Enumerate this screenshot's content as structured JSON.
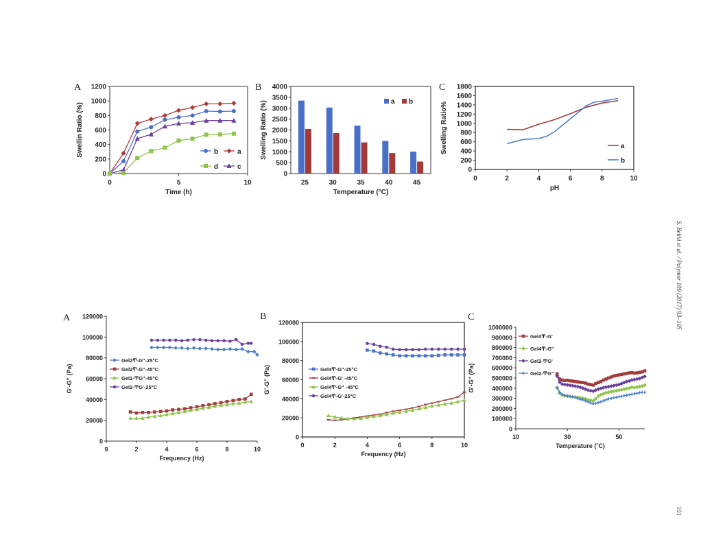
{
  "page": {
    "journal_ref": "S. Bekhi et al. / Polymer 109 (2017) 93–105",
    "page_number": "101"
  },
  "chart_data": [
    {
      "panel": "A",
      "type": "line",
      "xlabel": "Time (h)",
      "ylabel": "Swellin Ratio (%)",
      "xlim": [
        0,
        10
      ],
      "ylim": [
        0,
        1200
      ],
      "xticks": [
        0,
        5,
        10
      ],
      "yticks": [
        0,
        200,
        400,
        600,
        800,
        1000,
        1200
      ],
      "legend": [
        "b",
        "a",
        "d",
        "c"
      ],
      "series": [
        {
          "name": "a",
          "color": "#b23a3a",
          "marker": "diamond",
          "x": [
            0,
            1,
            2,
            3,
            4,
            5,
            6,
            7,
            8,
            9
          ],
          "y": [
            0,
            280,
            690,
            750,
            800,
            870,
            910,
            960,
            960,
            970
          ]
        },
        {
          "name": "b",
          "color": "#4a6fc8",
          "marker": "circle",
          "x": [
            0,
            1,
            2,
            3,
            4,
            5,
            6,
            7,
            8,
            9
          ],
          "y": [
            0,
            170,
            580,
            640,
            740,
            775,
            800,
            860,
            855,
            860
          ]
        },
        {
          "name": "c",
          "color": "#6a3f9e",
          "marker": "triangle",
          "x": [
            0,
            1,
            2,
            3,
            4,
            5,
            6,
            7,
            8,
            9
          ],
          "y": [
            0,
            50,
            480,
            540,
            650,
            690,
            700,
            730,
            730,
            730
          ]
        },
        {
          "name": "d",
          "color": "#8ec44a",
          "marker": "square",
          "x": [
            0,
            1,
            2,
            3,
            4,
            5,
            6,
            7,
            8,
            9
          ],
          "y": [
            0,
            10,
            215,
            310,
            355,
            455,
            480,
            535,
            540,
            550
          ]
        }
      ]
    },
    {
      "panel": "B",
      "type": "bar",
      "xlabel": "Temperature (°C)",
      "ylabel": "Swelling Ratio (%)",
      "ylim": [
        0,
        4000
      ],
      "yticks": [
        0,
        500,
        1000,
        1500,
        2000,
        2500,
        3000,
        3500,
        4000
      ],
      "categories": [
        "25",
        "30",
        "35",
        "40",
        "45"
      ],
      "legend": [
        "a",
        "b"
      ],
      "series": [
        {
          "name": "a",
          "color": "#4a6fc8",
          "values": [
            3350,
            3030,
            2200,
            1500,
            1010
          ]
        },
        {
          "name": "b",
          "color": "#a33a3a",
          "values": [
            2050,
            1860,
            1430,
            940,
            550
          ]
        }
      ]
    },
    {
      "panel": "C",
      "type": "line",
      "xlabel": "pH",
      "ylabel": "Swelling Ratio%",
      "xlim": [
        0,
        10
      ],
      "ylim": [
        0,
        1800
      ],
      "xticks": [
        0,
        2,
        4,
        6,
        8,
        10
      ],
      "yticks": [
        0,
        200,
        400,
        600,
        800,
        1000,
        1200,
        1400,
        1600,
        1800
      ],
      "legend": [
        "a",
        "b"
      ],
      "series": [
        {
          "name": "a",
          "color": "#a33a3a",
          "marker": "none",
          "x": [
            2,
            3,
            4,
            5,
            6,
            7,
            8,
            9
          ],
          "y": [
            870,
            860,
            980,
            1080,
            1210,
            1350,
            1440,
            1490
          ]
        },
        {
          "name": "b",
          "color": "#4a7fd0",
          "marker": "none",
          "x": [
            2,
            3,
            3.5,
            4,
            4.5,
            5,
            6,
            7,
            7.5,
            8,
            9
          ],
          "y": [
            560,
            650,
            660,
            670,
            720,
            820,
            1100,
            1380,
            1460,
            1480,
            1540
          ]
        }
      ]
    },
    {
      "panel": "A",
      "type": "line",
      "xlabel": "Frequency (Hz)",
      "ylabel": "G'-G\" (Pa)",
      "xlim": [
        0,
        10
      ],
      "ylim": [
        0,
        120000
      ],
      "xticks": [
        0,
        2,
        4,
        6,
        8,
        10
      ],
      "yticks": [
        0,
        20000,
        40000,
        60000,
        80000,
        100000,
        120000
      ],
      "legend": [
        "Gel2Ͳ-G\"-25°C",
        "Gel2Ͳ-G\"-45°C",
        "Gel2-ͲG\"-45°C",
        "Gel2-ͲG'-25°C"
      ],
      "series": [
        {
          "name": "Gel2Ͳ-G\"-25°C",
          "color": "#4a7fd0",
          "marker": "diamond",
          "x": [
            3,
            3.4,
            3.8,
            4.2,
            4.6,
            5,
            5.4,
            5.8,
            6.2,
            6.6,
            7,
            7.4,
            7.8,
            8.2,
            8.6,
            9,
            9.4,
            9.8,
            10
          ],
          "y": [
            90000,
            90000,
            90000,
            90000,
            89500,
            89500,
            89000,
            89500,
            89000,
            89000,
            88500,
            88000,
            88000,
            88500,
            88000,
            88500,
            86000,
            86000,
            83000
          ]
        },
        {
          "name": "Gel2Ͳ-G\"-45°C",
          "color": "#a33a3a",
          "marker": "square",
          "x": [
            1.6,
            2,
            2.4,
            2.8,
            3.2,
            3.6,
            4,
            4.4,
            4.8,
            5.2,
            5.6,
            6,
            6.4,
            6.8,
            7.2,
            7.6,
            8,
            8.4,
            8.8,
            9.2,
            9.6
          ],
          "y": [
            28000,
            27000,
            27500,
            27500,
            28000,
            28500,
            29000,
            30000,
            30500,
            31000,
            32000,
            33000,
            34000,
            35000,
            36000,
            37000,
            38000,
            39000,
            40000,
            40500,
            45000
          ]
        },
        {
          "name": "Gel2-ͲG\"-45°C",
          "color": "#8ec44a",
          "marker": "triangle",
          "x": [
            1.6,
            2,
            2.4,
            2.8,
            3.2,
            3.6,
            4,
            4.4,
            4.8,
            5.2,
            5.6,
            6,
            6.4,
            6.8,
            7.2,
            7.6,
            8,
            8.4,
            8.8,
            9.2,
            9.6
          ],
          "y": [
            22000,
            22000,
            22000,
            23000,
            24000,
            24500,
            25500,
            26500,
            27500,
            28500,
            29500,
            30500,
            31500,
            32500,
            33500,
            34500,
            35000,
            36000,
            36500,
            37500,
            38000
          ]
        },
        {
          "name": "Gel2-ͲG'-25°C",
          "color": "#6a3f9e",
          "marker": "circle",
          "x": [
            3,
            3.4,
            3.8,
            4.2,
            4.6,
            5,
            5.4,
            5.8,
            6.2,
            6.6,
            7,
            7.4,
            7.8,
            8.2,
            8.6,
            9,
            9.4,
            9.6
          ],
          "y": [
            97000,
            97000,
            97000,
            97000,
            97000,
            96500,
            97000,
            97500,
            97500,
            97000,
            96500,
            96500,
            96500,
            96000,
            97500,
            93000,
            94000,
            94000
          ]
        }
      ]
    },
    {
      "panel": "B",
      "type": "line",
      "xlabel": "Frequency (Hz)",
      "ylabel": "G'-G\" (Pa)",
      "xlim": [
        0,
        10
      ],
      "ylim": [
        0,
        120000
      ],
      "xticks": [
        0,
        2,
        4,
        6,
        8,
        10
      ],
      "yticks": [
        0,
        20000,
        40000,
        60000,
        80000,
        100000,
        120000
      ],
      "legend": [
        "Gel4Ͳ-G\"-25°C",
        "Gel4Ͳ-G' -45°C",
        "Gel4Ͳ-G\" -45°C",
        "Gel4Ͳ-G'-25°C"
      ],
      "series": [
        {
          "name": "Gel4Ͳ-G\"-25°C",
          "color": "#4a6fc8",
          "marker": "square",
          "x": [
            4,
            4.4,
            4.8,
            5.2,
            5.6,
            6,
            6.4,
            6.8,
            7.2,
            7.6,
            8,
            8.4,
            8.8,
            9.2,
            9.6,
            10
          ],
          "y": [
            91000,
            90000,
            88000,
            87000,
            86000,
            85000,
            85000,
            85000,
            85000,
            85000,
            85000,
            85500,
            86000,
            86000,
            86000,
            86000
          ]
        },
        {
          "name": "Gel4Ͳ-G' -45°C",
          "color": "#a33a3a",
          "marker": "dash",
          "x": [
            1.6,
            2,
            2.4,
            2.8,
            3.2,
            3.6,
            4,
            4.4,
            4.8,
            5.2,
            5.6,
            6,
            6.4,
            6.8,
            7.2,
            7.6,
            8,
            8.4,
            8.8,
            9.2,
            9.6,
            10
          ],
          "y": [
            18000,
            17500,
            18000,
            19000,
            20000,
            21000,
            22000,
            23000,
            24000,
            25500,
            27000,
            28000,
            29000,
            30500,
            32000,
            34000,
            35500,
            37000,
            38500,
            40000,
            42000,
            47000
          ]
        },
        {
          "name": "Gel4Ͳ-G\" -45°C",
          "color": "#8ec44a",
          "marker": "triangle",
          "x": [
            1.6,
            2,
            2.4,
            2.8,
            3.2,
            3.6,
            4,
            4.4,
            4.8,
            5.2,
            5.6,
            6,
            6.4,
            6.8,
            7.2,
            7.6,
            8,
            8.4,
            8.8,
            9.2,
            9.6,
            10
          ],
          "y": [
            22500,
            21000,
            20000,
            19000,
            19000,
            19500,
            20500,
            21500,
            22500,
            23500,
            25000,
            26000,
            27000,
            28000,
            29500,
            31000,
            32500,
            33500,
            34500,
            35500,
            37000,
            38500
          ]
        },
        {
          "name": "Gel4Ͳ-G'-25°C",
          "color": "#6a3f9e",
          "marker": "circle",
          "x": [
            4,
            4.4,
            4.8,
            5.2,
            5.6,
            6,
            6.4,
            6.8,
            7.2,
            7.6,
            8,
            8.4,
            8.8,
            9.2,
            9.6,
            10
          ],
          "y": [
            98000,
            97000,
            95000,
            94000,
            92000,
            91500,
            91500,
            91500,
            91500,
            92000,
            92000,
            92000,
            92000,
            92000,
            92000,
            92000
          ]
        }
      ]
    },
    {
      "panel": "C",
      "type": "line",
      "xlabel": "Temperature (˚C)",
      "ylabel": "G'-G\" (Pa)",
      "xlim": [
        10,
        60
      ],
      "ylim": [
        0,
        1000000
      ],
      "xticks": [
        10,
        30,
        50
      ],
      "yticks": [
        0,
        100000,
        200000,
        300000,
        400000,
        500000,
        600000,
        700000,
        800000,
        900000,
        1000000
      ],
      "legend": [
        "Gel4Ͳ-G'",
        "Gel4Ͳ-G\"",
        "Gel2-ͲG'",
        "Gel2-ͲG\""
      ],
      "series": [
        {
          "name": "Gel4Ͳ-G'",
          "color": "#a33a3a",
          "marker": "square",
          "x": [
            26,
            27,
            28,
            29,
            30,
            31,
            32,
            33,
            34,
            35,
            36,
            37,
            38,
            39,
            40,
            41,
            42,
            43,
            44,
            45,
            46,
            47,
            48,
            49,
            50,
            51,
            52,
            53,
            54,
            55,
            56,
            57,
            58,
            59,
            60
          ],
          "y": [
            540000,
            490000,
            480000,
            475000,
            478000,
            472000,
            470000,
            465000,
            462000,
            458000,
            455000,
            450000,
            440000,
            435000,
            430000,
            445000,
            455000,
            465000,
            480000,
            490000,
            500000,
            510000,
            520000,
            525000,
            530000,
            535000,
            540000,
            545000,
            550000,
            552000,
            548000,
            550000,
            555000,
            560000,
            570000
          ]
        },
        {
          "name": "Gel4Ͳ-G\"",
          "color": "#8ec44a",
          "marker": "diamond",
          "x": [
            26,
            27,
            28,
            29,
            30,
            31,
            32,
            33,
            34,
            35,
            36,
            37,
            38,
            39,
            40,
            41,
            42,
            43,
            44,
            45,
            46,
            47,
            48,
            49,
            50,
            51,
            52,
            53,
            54,
            55,
            56,
            57,
            58,
            59,
            60
          ],
          "y": [
            400000,
            350000,
            330000,
            325000,
            320000,
            318000,
            315000,
            312000,
            310000,
            305000,
            300000,
            295000,
            285000,
            280000,
            275000,
            295000,
            320000,
            335000,
            345000,
            355000,
            360000,
            365000,
            370000,
            375000,
            380000,
            385000,
            390000,
            395000,
            400000,
            410000,
            405000,
            410000,
            415000,
            420000,
            430000
          ]
        },
        {
          "name": "Gel2-ͲG'",
          "color": "#6a3f9e",
          "marker": "diamond",
          "x": [
            26,
            27,
            28,
            29,
            30,
            31,
            32,
            33,
            34,
            35,
            36,
            37,
            38,
            39,
            40,
            41,
            42,
            43,
            44,
            45,
            46,
            47,
            48,
            49,
            50,
            51,
            52,
            53,
            54,
            55,
            56,
            57,
            58,
            59,
            60
          ],
          "y": [
            520000,
            460000,
            440000,
            435000,
            432000,
            428000,
            425000,
            420000,
            415000,
            408000,
            400000,
            390000,
            380000,
            375000,
            370000,
            380000,
            390000,
            398000,
            405000,
            410000,
            415000,
            420000,
            425000,
            430000,
            435000,
            445000,
            455000,
            465000,
            470000,
            480000,
            485000,
            490000,
            495000,
            505000,
            515000
          ]
        },
        {
          "name": "Gel2-ͲG\"",
          "color": "#4a7fd0",
          "marker": "star",
          "x": [
            26,
            27,
            28,
            29,
            30,
            31,
            32,
            33,
            34,
            35,
            36,
            37,
            38,
            39,
            40,
            41,
            42,
            43,
            44,
            45,
            46,
            47,
            48,
            49,
            50,
            51,
            52,
            53,
            54,
            55,
            56,
            57,
            58,
            59,
            60
          ],
          "y": [
            410000,
            360000,
            340000,
            330000,
            325000,
            320000,
            315000,
            310000,
            300000,
            290000,
            285000,
            275000,
            265000,
            255000,
            245000,
            250000,
            258000,
            265000,
            275000,
            285000,
            295000,
            300000,
            305000,
            310000,
            315000,
            320000,
            325000,
            330000,
            335000,
            340000,
            345000,
            350000,
            355000,
            360000,
            360000
          ]
        }
      ]
    }
  ]
}
